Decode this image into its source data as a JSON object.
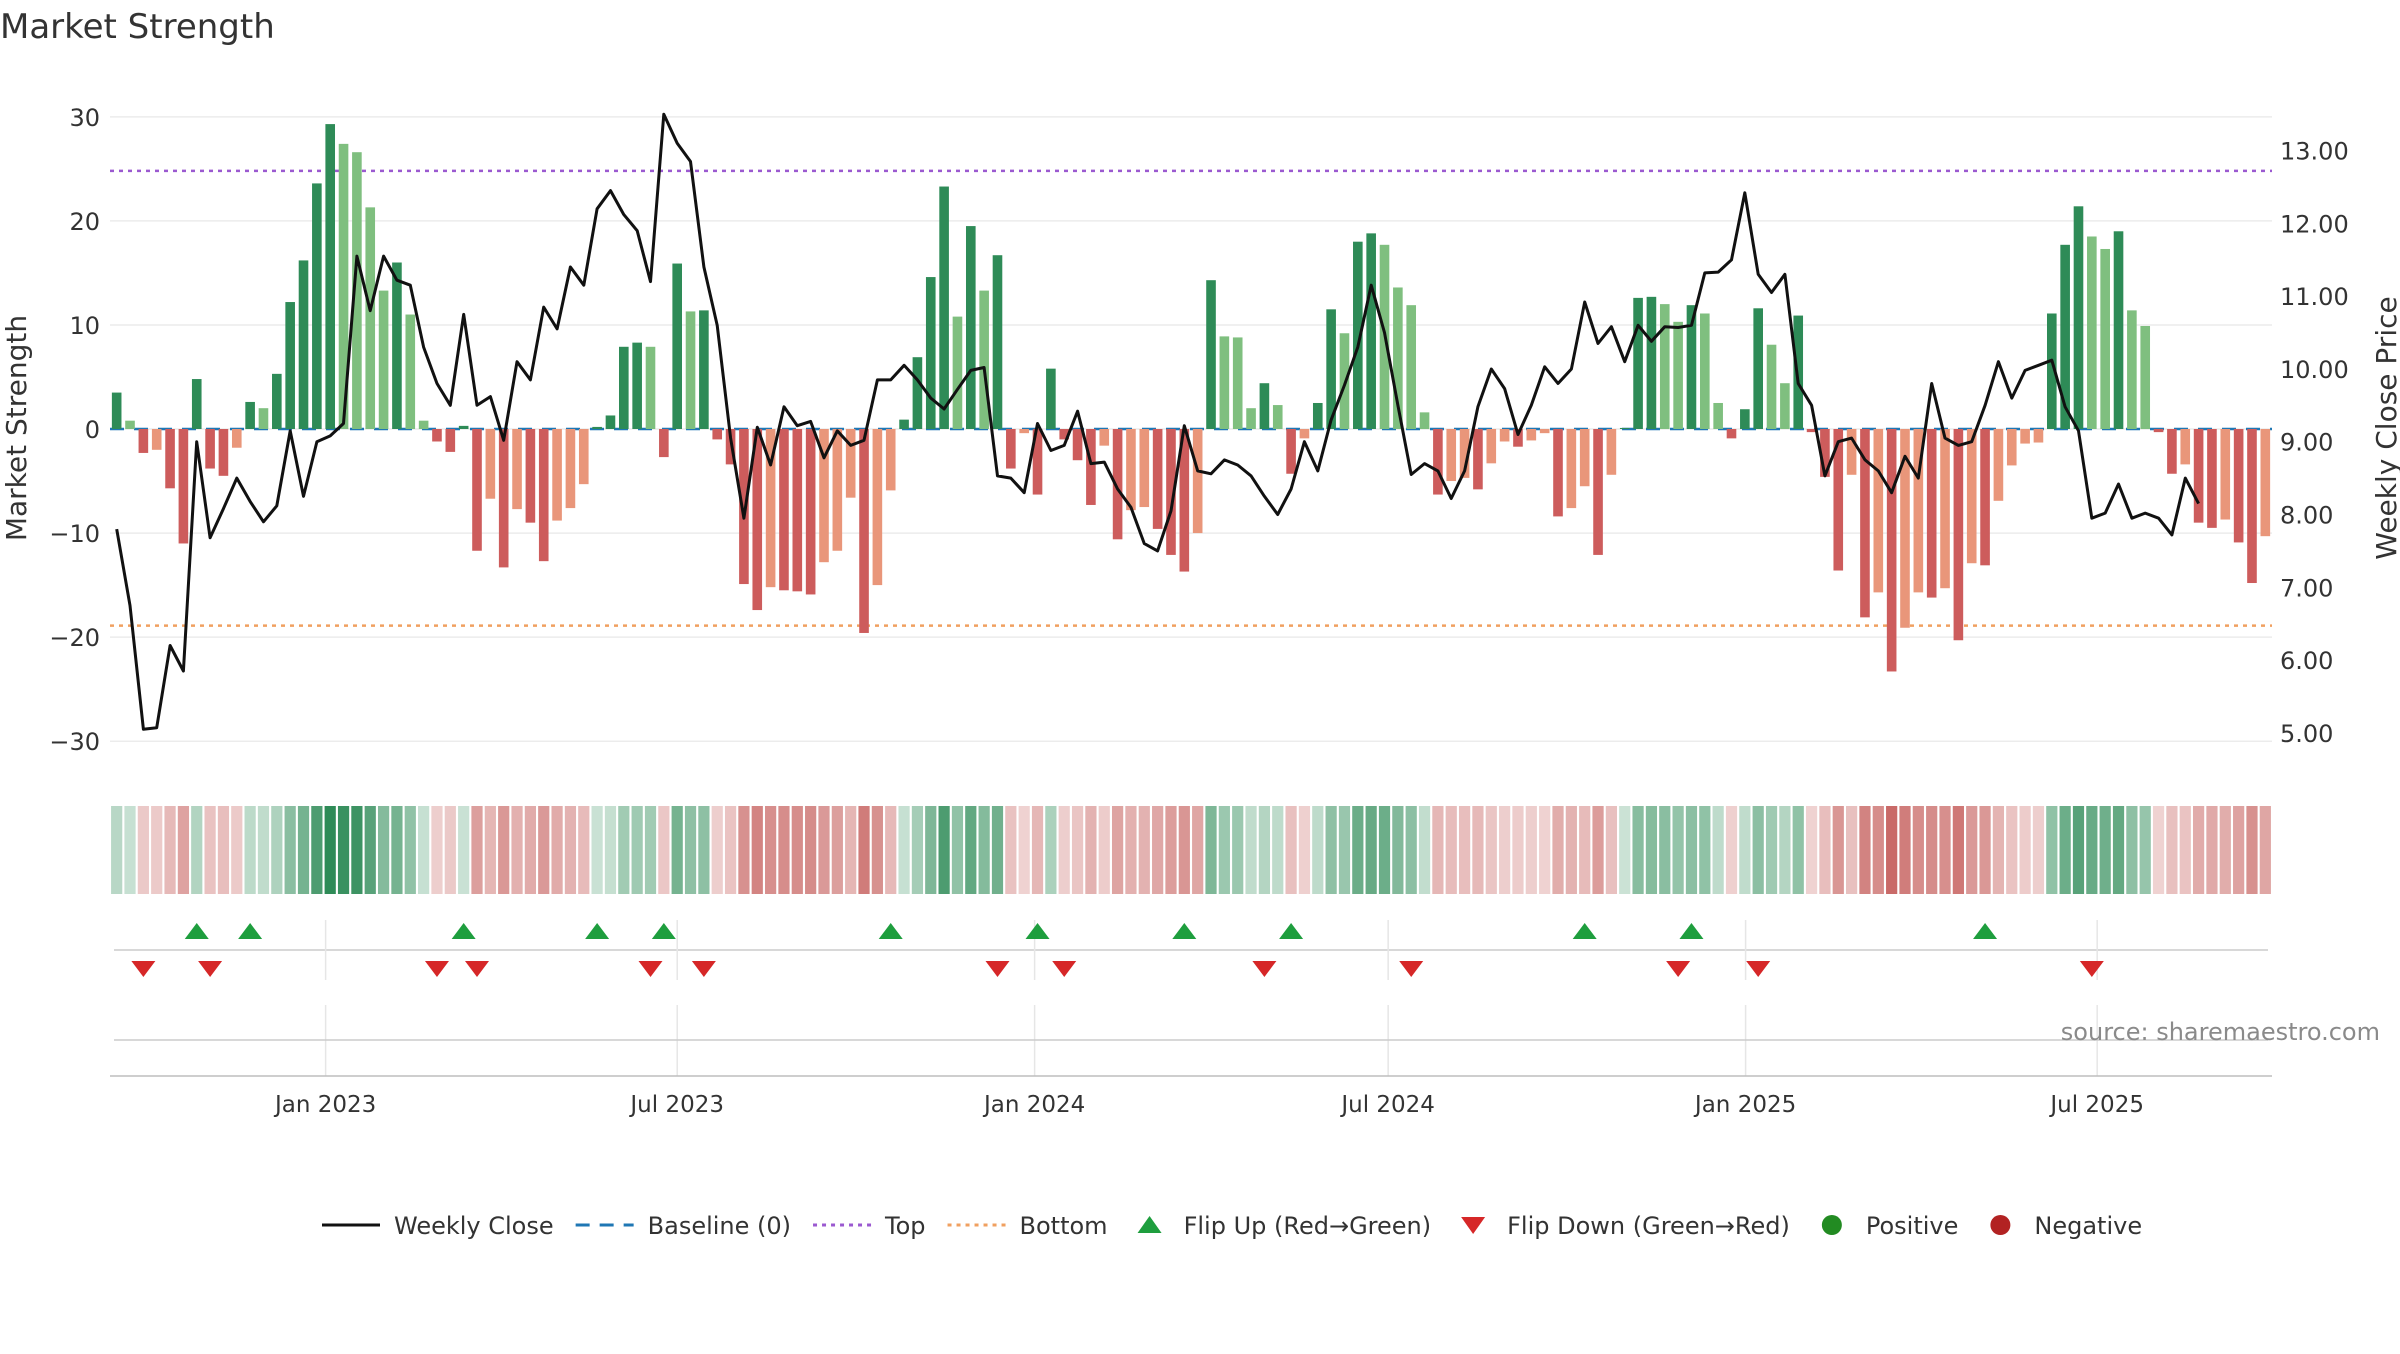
{
  "chart_data": {
    "type": "bar",
    "title": "Market Strength",
    "ylabel": "Market Strength",
    "y2label": "Weekly Close Price",
    "ylim": [
      -32,
      32
    ],
    "y2lim": [
      4.6,
      13.75
    ],
    "yticks": [
      30,
      20,
      10,
      0,
      -10,
      -20,
      -30
    ],
    "ytick_labels": [
      "30",
      "20",
      "10",
      "0",
      "−10",
      "−20",
      "−30"
    ],
    "y2ticks": [
      13,
      12,
      11,
      10,
      9,
      8,
      7,
      6,
      5
    ],
    "y2tick_labels": [
      "13.00",
      "12.00",
      "11.00",
      "10.00",
      "9.00",
      "8.00",
      "7.00",
      "6.00",
      "5.00"
    ],
    "top_level": 24.8,
    "bottom_level": -18.9,
    "baseline": 0,
    "x_start": "2022-09-12",
    "x_end": "2025-09-29",
    "date_ticks": [
      {
        "label": "Jan 2023",
        "date": "2023-01-01"
      },
      {
        "label": "Jul 2023",
        "date": "2023-07-01"
      },
      {
        "label": "Jan 2024",
        "date": "2024-01-01"
      },
      {
        "label": "Jul 2024",
        "date": "2024-07-01"
      },
      {
        "label": "Jan 2025",
        "date": "2025-01-01"
      },
      {
        "label": "Jul 2025",
        "date": "2025-07-01"
      }
    ],
    "strength_values": [
      3.5,
      0.8,
      -2.3,
      -2,
      -5.7,
      -11,
      4.8,
      -3.8,
      -4.5,
      -1.8,
      2.6,
      2,
      5.3,
      12.2,
      16.2,
      23.6,
      29.3,
      27.4,
      26.6,
      21.3,
      13.3,
      16,
      11,
      0.8,
      -1.2,
      -2.2,
      0.3,
      -11.7,
      -6.7,
      -13.3,
      -7.7,
      -9,
      -12.7,
      -8.8,
      -7.6,
      -5.3,
      0.2,
      1.3,
      7.9,
      8.3,
      7.9,
      -2.7,
      15.9,
      11.3,
      11.4,
      -1,
      -3.4,
      -14.9,
      -17.4,
      -15.2,
      -15.5,
      -15.6,
      -15.9,
      -12.8,
      -11.7,
      -6.6,
      -19.6,
      -15,
      -5.9,
      0.9,
      6.9,
      14.6,
      23.3,
      10.8,
      19.5,
      13.3,
      16.7,
      -3.8,
      -0.4,
      -6.3,
      5.8,
      -1,
      -3,
      -7.3,
      -1.6,
      -10.6,
      -7.8,
      -7.5,
      -9.6,
      -12.1,
      -13.7,
      -10,
      14.3,
      8.9,
      8.8,
      2,
      4.4,
      2.3,
      -4.3,
      -0.9,
      2.5,
      11.5,
      9.2,
      18,
      18.8,
      17.7,
      13.6,
      11.9,
      1.6,
      -6.3,
      -5,
      -4.7,
      -5.8,
      -3.3,
      -1.2,
      -1.7,
      -1.1,
      -0.4,
      -8.4,
      -7.6,
      -5.5,
      -12.1,
      -4.4,
      0.1,
      12.6,
      12.7,
      12,
      10.3,
      11.9,
      11.1,
      2.5,
      -0.9,
      1.9,
      11.6,
      8.1,
      4.4,
      10.9,
      -0.3,
      -4.6,
      -13.6,
      -4.4,
      -18.1,
      -15.7,
      -23.3,
      -19.1,
      -15.7,
      -16.2,
      -15.3,
      -20.3,
      -12.9,
      -13.1,
      -6.9,
      -3.5,
      -1.4,
      -1.3,
      11.1,
      17.7,
      21.4,
      18.5,
      17.3,
      19,
      11.4,
      9.9,
      -0.3,
      -4.3,
      -3.4,
      -9,
      -9.5,
      -8.7,
      -10.9,
      -14.8,
      -10.3
    ],
    "weekly_close": [
      7.8,
      6.75,
      5.05,
      5.07,
      6.2,
      5.85,
      9.0,
      7.68,
      8.08,
      8.5,
      8.18,
      7.9,
      8.12,
      9.15,
      8.25,
      9.0,
      9.08,
      9.25,
      11.55,
      10.8,
      11.55,
      11.22,
      11.15,
      10.3,
      9.8,
      9.5,
      10.75,
      9.5,
      9.62,
      9.02,
      10.1,
      9.85,
      10.85,
      10.55,
      11.4,
      11.15,
      12.2,
      12.45,
      12.12,
      11.9,
      11.2,
      13.5,
      13.1,
      12.85,
      11.4,
      10.6,
      9.05,
      7.95,
      9.2,
      8.68,
      9.48,
      9.22,
      9.28,
      8.78,
      9.15,
      8.95,
      9.02,
      9.85,
      9.85,
      10.05,
      9.85,
      9.6,
      9.45,
      9.72,
      9.98,
      10.02,
      8.53,
      8.5,
      8.3,
      9.25,
      8.88,
      8.95,
      9.42,
      8.7,
      8.72,
      8.35,
      8.1,
      7.6,
      7.5,
      8.05,
      9.22,
      8.6,
      8.56,
      8.75,
      8.68,
      8.53,
      8.25,
      8.0,
      8.35,
      9.0,
      8.6,
      9.3,
      9.78,
      10.3,
      11.15,
      10.5,
      9.5,
      8.55,
      8.7,
      8.6,
      8.22,
      8.6,
      9.48,
      10.0,
      9.73,
      9.1,
      9.5,
      10.03,
      9.8,
      10.0,
      10.92,
      10.35,
      10.58,
      10.1,
      10.6,
      10.38,
      10.58,
      10.57,
      10.6,
      11.32,
      11.33,
      11.5,
      12.42,
      11.3,
      11.05,
      11.3,
      9.8,
      9.5,
      8.53,
      9.0,
      9.05,
      8.75,
      8.6,
      8.3,
      8.8,
      8.5,
      9.8,
      9.05,
      8.95,
      9.0,
      9.5,
      10.1,
      9.6,
      9.98,
      10.05,
      10.12,
      9.48,
      9.15,
      7.95,
      8.02,
      8.42,
      7.95,
      8.02,
      7.95,
      7.72,
      8.5,
      8.15
    ],
    "heat_strip": {
      "label": "market strength heat strip",
      "green_color": "#2e8b57",
      "red_color": "#c0504d"
    },
    "flip_up_indices": [
      6,
      10,
      26,
      36,
      41,
      58,
      69,
      80,
      88,
      110,
      118,
      140
    ],
    "flip_down_indices": [
      2,
      7,
      24,
      27,
      40,
      44,
      66,
      71,
      86,
      97,
      117,
      123,
      148
    ],
    "colors": {
      "strong_green": "#2e8b57",
      "light_green": "#7fbf7f",
      "strong_red": "#cd5c5c",
      "light_red": "#e9967a",
      "close_line": "#111111",
      "baseline": "#1f77b4",
      "top_line": "#9b59d0",
      "bottom_line": "#f0a060",
      "flip_up": "#1e9e3e",
      "flip_down": "#d62728",
      "positive": "#228b22",
      "negative": "#b22222"
    },
    "legend": [
      {
        "label": "Weekly Close",
        "kind": "line"
      },
      {
        "label": "Baseline (0)",
        "kind": "dash"
      },
      {
        "label": "Top",
        "kind": "dot-top"
      },
      {
        "label": "Bottom",
        "kind": "dot-bottom"
      },
      {
        "label": "Flip Up (Red→Green)",
        "kind": "tri-up"
      },
      {
        "label": "Flip Down (Green→Red)",
        "kind": "tri-down"
      },
      {
        "label": "Positive",
        "kind": "circle-pos"
      },
      {
        "label": "Negative",
        "kind": "circle-neg"
      }
    ],
    "legend_position": "bottom-center",
    "source": "source: sharemaestro.com"
  }
}
